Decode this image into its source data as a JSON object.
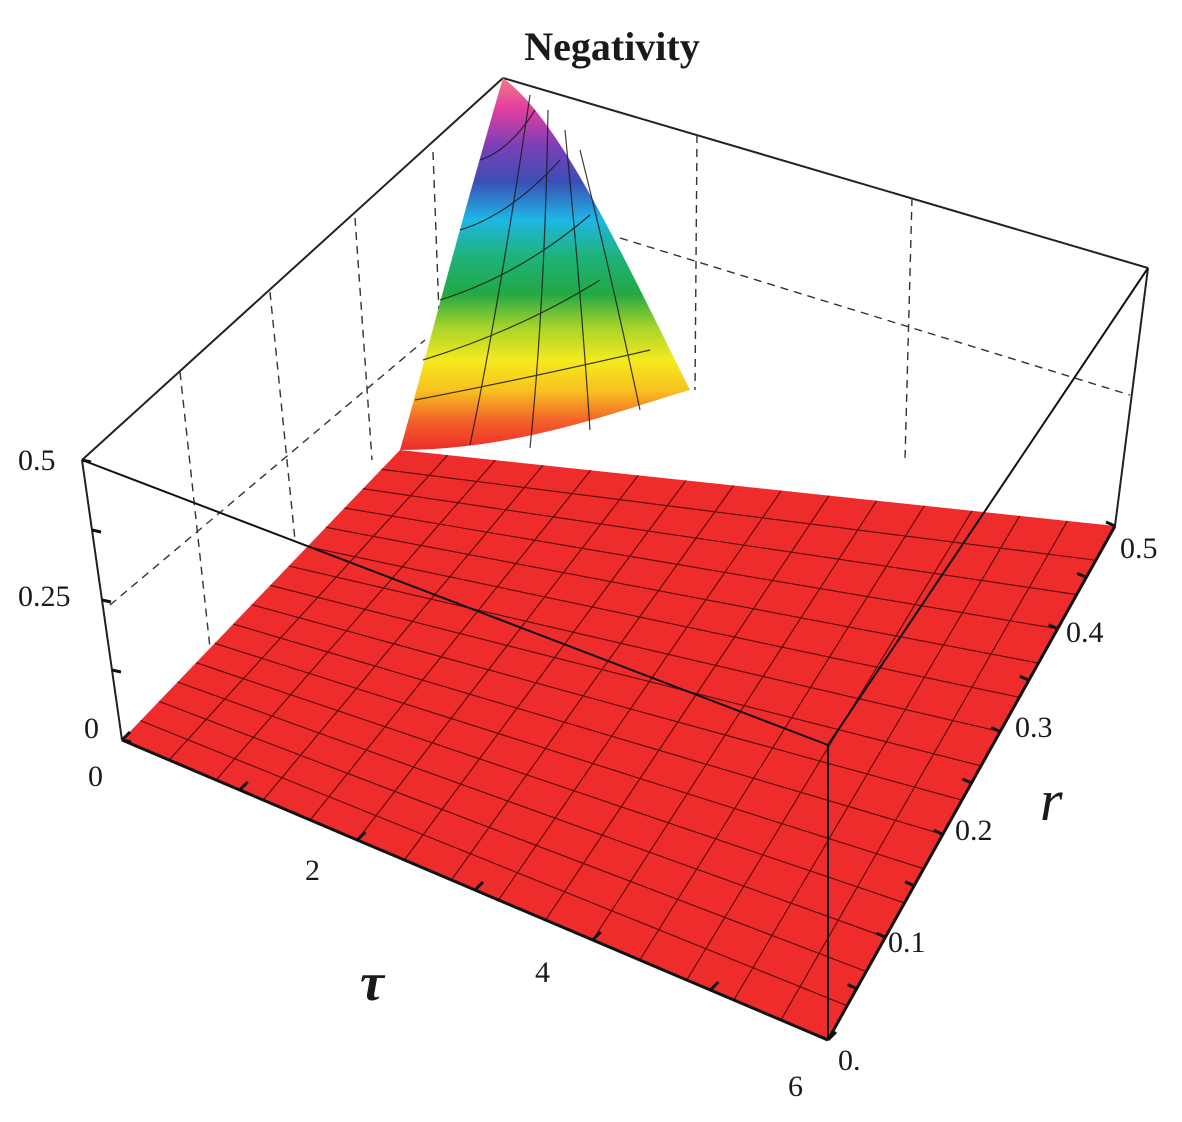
{
  "chart_data": {
    "type": "surface3d",
    "title": "Negativity",
    "xlabel": "τ",
    "ylabel": "r",
    "zlabel": "",
    "x_ticks": [
      "0",
      "2",
      "4",
      "6"
    ],
    "y_ticks": [
      "0.",
      "0.1",
      "0.2",
      "0.3",
      "0.4",
      "0.5"
    ],
    "z_ticks": [
      "0",
      "0.25",
      "0.5"
    ],
    "x_range": [
      0,
      6
    ],
    "y_range": [
      0,
      0.5
    ],
    "z_range": [
      0,
      0.5
    ],
    "grid": false,
    "box": true,
    "colormap": "rainbow",
    "surface_color_at_zero": "#ee2c2c",
    "peak": {
      "tau": 0,
      "r": 0.5,
      "value": 0.5
    },
    "surface_profile_along_tau_at_r_0.5": {
      "tau": [
        0,
        0.5,
        1.0,
        1.5,
        2.0,
        2.5
      ],
      "value": [
        0.5,
        0.37,
        0.22,
        0.1,
        0.03,
        0.0
      ]
    },
    "surface_profile_along_r_at_tau_0": {
      "r": [
        0.3,
        0.35,
        0.4,
        0.45,
        0.5
      ],
      "value": [
        0.0,
        0.03,
        0.15,
        0.34,
        0.5
      ]
    }
  }
}
